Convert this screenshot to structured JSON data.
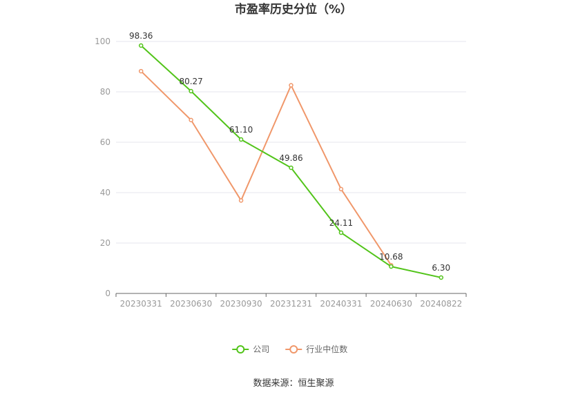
{
  "chart_data": {
    "type": "line",
    "title": "市盈率历史分位（%）",
    "categories": [
      "20230331",
      "20230630",
      "20230930",
      "20231231",
      "20240331",
      "20240630",
      "20240822"
    ],
    "ylim": [
      0,
      100
    ],
    "yticks": [
      0,
      20,
      40,
      60,
      80,
      100
    ],
    "grid": true,
    "legend_position": "bottom-center",
    "series": [
      {
        "name": "公司",
        "color": "#52c41a",
        "values": [
          98.36,
          80.27,
          61.1,
          49.86,
          24.11,
          10.68,
          6.3
        ],
        "labels": [
          "98.36",
          "80.27",
          "61.10",
          "49.86",
          "24.11",
          "10.68",
          "6.30"
        ]
      },
      {
        "name": "行业中位数",
        "color": "#f0976a",
        "values": [
          88.2,
          68.8,
          36.9,
          82.6,
          41.4,
          11.2,
          null
        ]
      }
    ]
  },
  "source": "数据来源：恒生聚源"
}
